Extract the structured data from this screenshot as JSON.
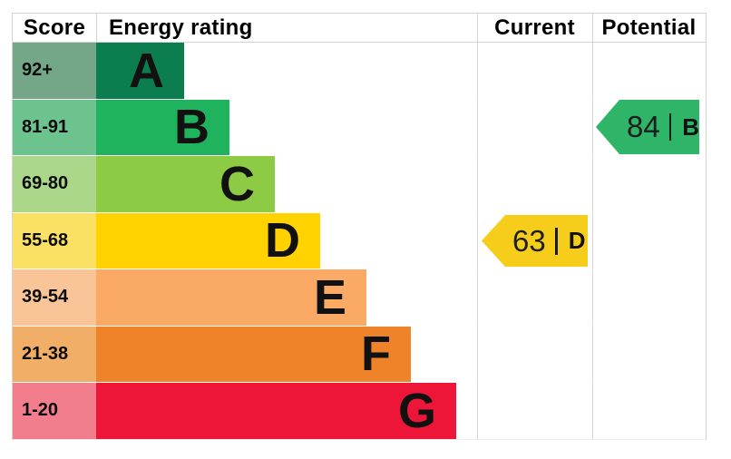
{
  "header": {
    "score": "Score",
    "energy_rating": "Energy rating",
    "current": "Current",
    "potential": "Potential"
  },
  "bands": [
    {
      "range": "92+",
      "letter": "A",
      "bar_color": "#0b7d4e",
      "tint_color": "#73a787"
    },
    {
      "range": "81-91",
      "letter": "B",
      "bar_color": "#1eb35c",
      "tint_color": "#6cc38e"
    },
    {
      "range": "69-80",
      "letter": "C",
      "bar_color": "#8ecb44",
      "tint_color": "#aad789"
    },
    {
      "range": "55-68",
      "letter": "D",
      "bar_color": "#ffd200",
      "tint_color": "#fbe163"
    },
    {
      "range": "39-54",
      "letter": "E",
      "bar_color": "#fbaa65",
      "tint_color": "#f9c598"
    },
    {
      "range": "21-38",
      "letter": "F",
      "bar_color": "#ee8329",
      "tint_color": "#f1ae66"
    },
    {
      "range": "1-20",
      "letter": "G",
      "bar_color": "#ed1639",
      "tint_color": "#f17d8d"
    }
  ],
  "current_marker": {
    "value": "63",
    "separator": "|",
    "band": "D",
    "color": "#f5cd1a"
  },
  "potential_marker": {
    "value": "84",
    "separator": "|",
    "band": "B",
    "color": "#2fb567"
  },
  "border_color": "#d4d4d4",
  "chart_data": {
    "type": "bar",
    "variant": "epc-energy-rating",
    "title": "Energy rating",
    "column_headers": [
      "Score",
      "Energy rating",
      "Current",
      "Potential"
    ],
    "bands": [
      {
        "letter": "A",
        "score_range": "92+"
      },
      {
        "letter": "B",
        "score_range": "81-91"
      },
      {
        "letter": "C",
        "score_range": "69-80"
      },
      {
        "letter": "D",
        "score_range": "55-68"
      },
      {
        "letter": "E",
        "score_range": "39-54"
      },
      {
        "letter": "F",
        "score_range": "21-38"
      },
      {
        "letter": "G",
        "score_range": "1-20"
      }
    ],
    "markers": [
      {
        "name": "Current",
        "score": 63,
        "band": "D"
      },
      {
        "name": "Potential",
        "score": 84,
        "band": "B"
      }
    ],
    "legend_position": "none",
    "grid": false
  }
}
